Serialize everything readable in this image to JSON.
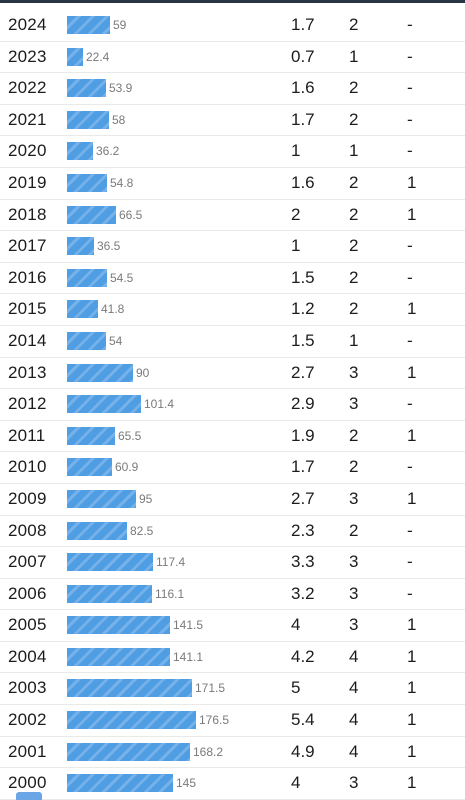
{
  "colors": {
    "bar": "#4f9de3",
    "top_border": "#2a3445"
  },
  "table": {
    "rows": [
      {
        "year": "2024",
        "value": 59,
        "label": "59",
        "a": "1.7",
        "b": "2",
        "c": "-"
      },
      {
        "year": "2023",
        "value": 22.4,
        "label": "22.4",
        "a": "0.7",
        "b": "1",
        "c": "-"
      },
      {
        "year": "2022",
        "value": 53.9,
        "label": "53.9",
        "a": "1.6",
        "b": "2",
        "c": "-"
      },
      {
        "year": "2021",
        "value": 58,
        "label": "58",
        "a": "1.7",
        "b": "2",
        "c": "-"
      },
      {
        "year": "2020",
        "value": 36.2,
        "label": "36.2",
        "a": "1",
        "b": "1",
        "c": "-"
      },
      {
        "year": "2019",
        "value": 54.8,
        "label": "54.8",
        "a": "1.6",
        "b": "2",
        "c": "1"
      },
      {
        "year": "2018",
        "value": 66.5,
        "label": "66.5",
        "a": "2",
        "b": "2",
        "c": "1"
      },
      {
        "year": "2017",
        "value": 36.5,
        "label": "36.5",
        "a": "1",
        "b": "2",
        "c": "-"
      },
      {
        "year": "2016",
        "value": 54.5,
        "label": "54.5",
        "a": "1.5",
        "b": "2",
        "c": "-"
      },
      {
        "year": "2015",
        "value": 41.8,
        "label": "41.8",
        "a": "1.2",
        "b": "2",
        "c": "1"
      },
      {
        "year": "2014",
        "value": 54,
        "label": "54",
        "a": "1.5",
        "b": "1",
        "c": "-"
      },
      {
        "year": "2013",
        "value": 90,
        "label": "90",
        "a": "2.7",
        "b": "3",
        "c": "1"
      },
      {
        "year": "2012",
        "value": 101.4,
        "label": "101.4",
        "a": "2.9",
        "b": "3",
        "c": "-"
      },
      {
        "year": "2011",
        "value": 65.5,
        "label": "65.5",
        "a": "1.9",
        "b": "2",
        "c": "1"
      },
      {
        "year": "2010",
        "value": 60.9,
        "label": "60.9",
        "a": "1.7",
        "b": "2",
        "c": "-"
      },
      {
        "year": "2009",
        "value": 95,
        "label": "95",
        "a": "2.7",
        "b": "3",
        "c": "1"
      },
      {
        "year": "2008",
        "value": 82.5,
        "label": "82.5",
        "a": "2.3",
        "b": "2",
        "c": "-"
      },
      {
        "year": "2007",
        "value": 117.4,
        "label": "117.4",
        "a": "3.3",
        "b": "3",
        "c": "-"
      },
      {
        "year": "2006",
        "value": 116.1,
        "label": "116.1",
        "a": "3.2",
        "b": "3",
        "c": "-"
      },
      {
        "year": "2005",
        "value": 141.5,
        "label": "141.5",
        "a": "4",
        "b": "3",
        "c": "1"
      },
      {
        "year": "2004",
        "value": 141.1,
        "label": "141.1",
        "a": "4.2",
        "b": "4",
        "c": "1"
      },
      {
        "year": "2003",
        "value": 171.5,
        "label": "171.5",
        "a": "5",
        "b": "4",
        "c": "1"
      },
      {
        "year": "2002",
        "value": 176.5,
        "label": "176.5",
        "a": "5.4",
        "b": "4",
        "c": "1"
      },
      {
        "year": "2001",
        "value": 168.2,
        "label": "168.2",
        "a": "4.9",
        "b": "4",
        "c": "1"
      },
      {
        "year": "2000",
        "value": 145,
        "label": "145",
        "a": "4",
        "b": "3",
        "c": "1"
      }
    ]
  }
}
